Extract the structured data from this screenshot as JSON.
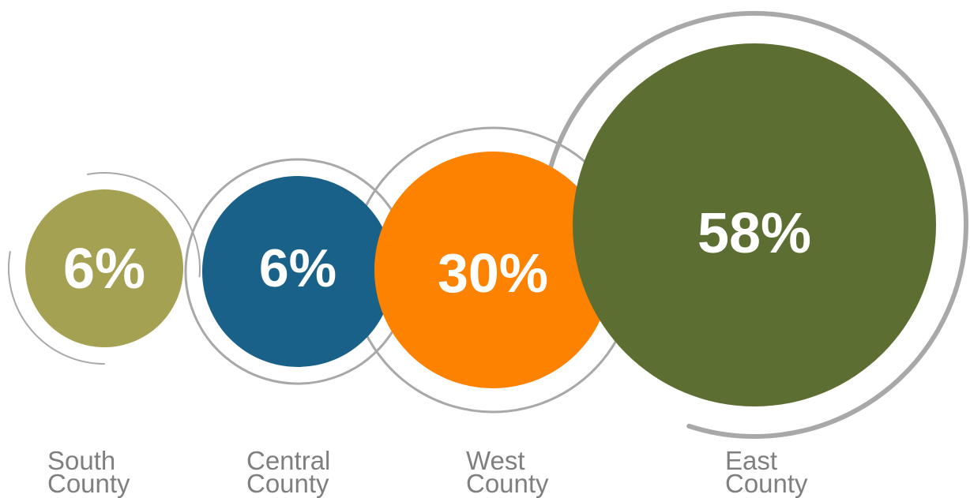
{
  "chart_data": {
    "type": "bubble",
    "categories": [
      "South County",
      "Central County",
      "West County",
      "East County"
    ],
    "values": [
      6,
      6,
      30,
      58
    ],
    "value_labels": [
      "6%",
      "6%",
      "30%",
      "58%"
    ],
    "label_lines": [
      [
        "South",
        "County"
      ],
      [
        "Central",
        "County"
      ],
      [
        "West",
        "County"
      ],
      [
        "East",
        "County"
      ]
    ],
    "legend": "none",
    "grid": false
  },
  "colors": {
    "south": "#a5a152",
    "central": "#1a6189",
    "west": "#fd8200",
    "east": "#5c6e31",
    "ring": "#a8a8a8",
    "label_text": "#7f7f7f",
    "value_text": "#ffffff"
  }
}
